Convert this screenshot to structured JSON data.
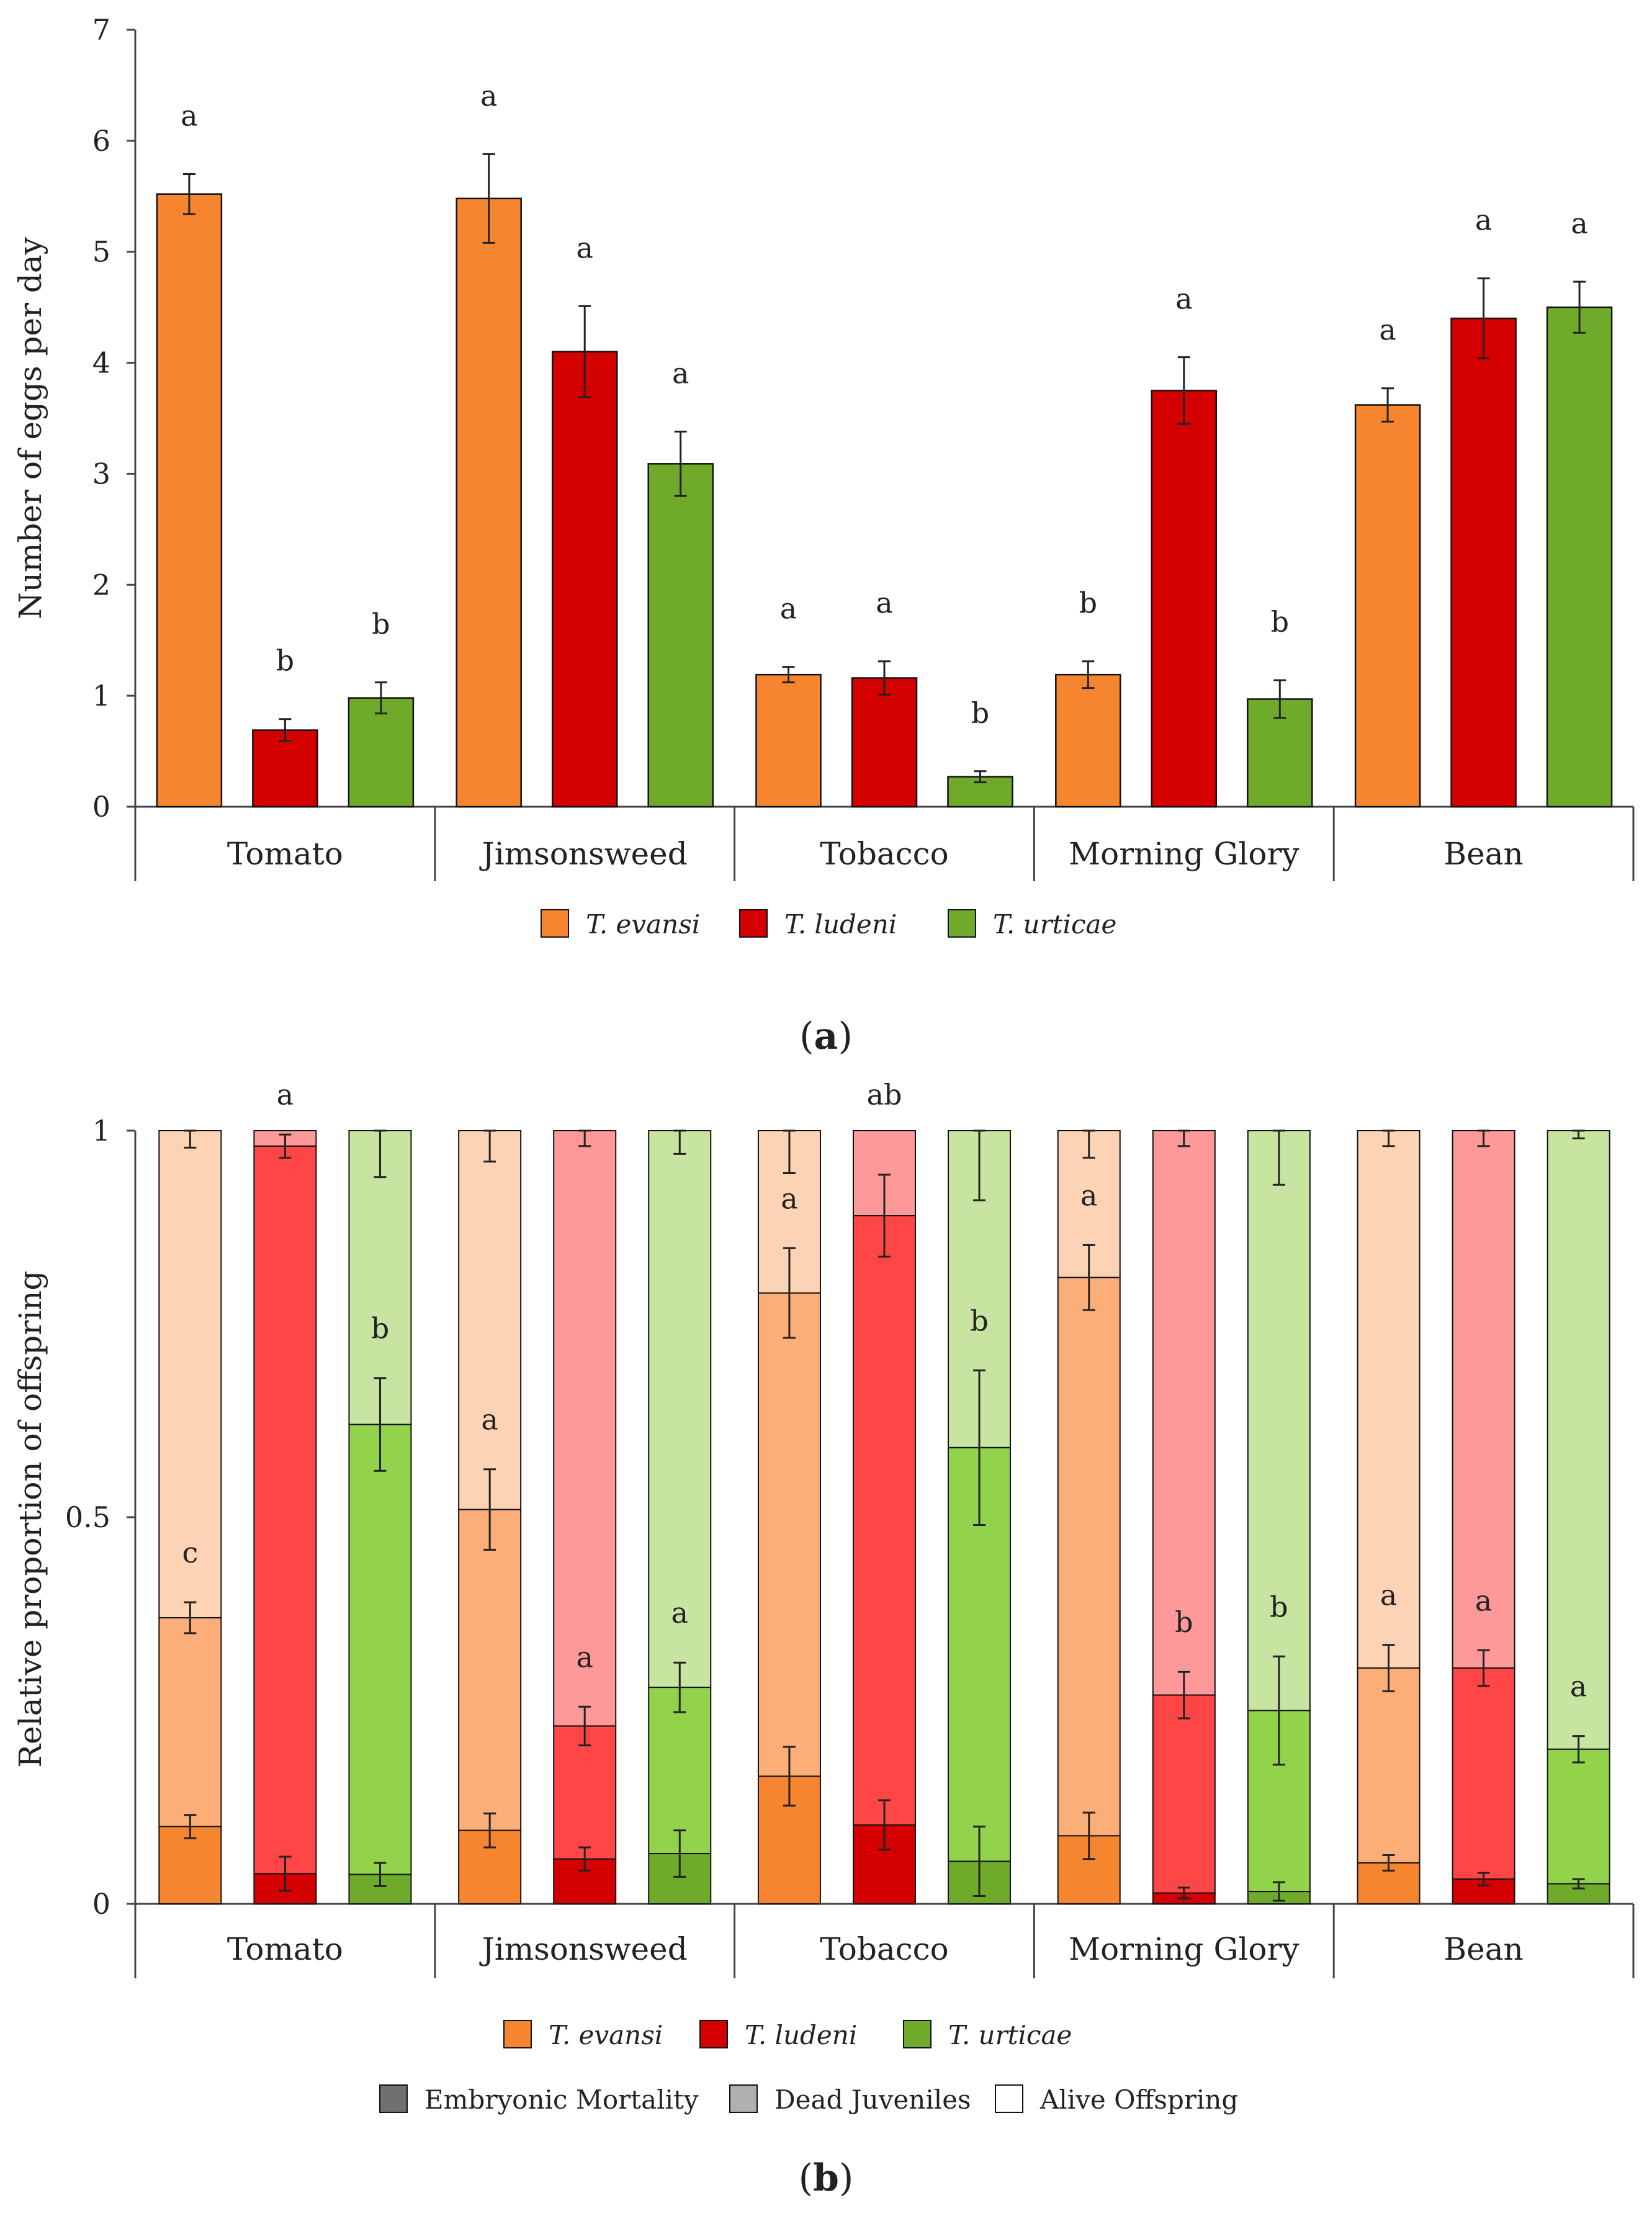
{
  "colors": {
    "T. evansi": {
      "embryonic": "#F5862F",
      "juvenile": "#FBAE78",
      "alive": "#FDD3B6"
    },
    "T. ludeni": {
      "embryonic": "#D40000",
      "juvenile": "#FF4646",
      "alive": "#FE9999"
    },
    "T. urticae": {
      "embryonic": "#6FAA2A",
      "juvenile": "#93D24B",
      "alive": "#C8E4A1"
    },
    "legend_embryonic": "#707070",
    "legend_juvenile": "#B0B0B0",
    "legend_alive": "#FFFFFF"
  },
  "chart_data": [
    {
      "type": "bar",
      "panel_label": "a",
      "ylabel": "Number of eggs per day",
      "xlabel": "",
      "ylim": [
        0,
        7
      ],
      "yticks": [
        "0",
        "1",
        "2",
        "3",
        "4",
        "5",
        "6",
        "7"
      ],
      "categories": [
        "Tomato",
        "Jimsonsweed",
        "Tobacco",
        "Morning Glory",
        "Bean"
      ],
      "series": [
        {
          "name": "T. evansi",
          "values": [
            5.52,
            5.48,
            1.19,
            1.19,
            3.62
          ],
          "errors": [
            0.18,
            0.4,
            0.07,
            0.12,
            0.15
          ],
          "letters": [
            "a",
            "a",
            "a",
            "b",
            "a"
          ]
        },
        {
          "name": "T. ludeni",
          "values": [
            0.69,
            4.1,
            1.16,
            3.75,
            4.4
          ],
          "errors": [
            0.1,
            0.41,
            0.15,
            0.3,
            0.36
          ],
          "letters": [
            "b",
            "a",
            "a",
            "a",
            "a"
          ]
        },
        {
          "name": "T. urticae",
          "values": [
            0.98,
            3.09,
            0.27,
            0.97,
            4.5
          ],
          "errors": [
            0.14,
            0.29,
            0.05,
            0.17,
            0.23
          ],
          "letters": [
            "b",
            "a",
            "b",
            "b",
            "a"
          ]
        }
      ],
      "legend": [
        "T. evansi",
        "T. ludeni",
        "T. urticae"
      ]
    },
    {
      "type": "bar",
      "stacked": true,
      "panel_label": "b",
      "ylabel": "Relative proportion of offspring",
      "xlabel": "",
      "ylim": [
        0,
        1
      ],
      "yticks": [
        "0",
        "0.5",
        "1"
      ],
      "categories": [
        "Tomato",
        "Jimsonsweed",
        "Tobacco",
        "Morning Glory",
        "Bean"
      ],
      "series": [
        {
          "name": "T. evansi",
          "embryonic_mortality": [
            0.1,
            0.095,
            0.165,
            0.088,
            0.053
          ],
          "embryonic_error": [
            0.015,
            0.022,
            0.038,
            0.03,
            0.01
          ],
          "cumulative_with_dead_juveniles": [
            0.37,
            0.51,
            0.79,
            0.81,
            0.305
          ],
          "cumulative_error": [
            0.02,
            0.052,
            0.058,
            0.042,
            0.03
          ],
          "top_error": [
            0.022,
            0.04,
            0.055,
            0.035,
            0.02
          ],
          "letters": [
            "c",
            "a",
            "a",
            "a",
            "a"
          ]
        },
        {
          "name": "T. ludeni",
          "embryonic_mortality": [
            0.039,
            0.058,
            0.102,
            0.014,
            0.032
          ],
          "embryonic_error": [
            0.022,
            0.015,
            0.032,
            0.007,
            0.008
          ],
          "cumulative_with_dead_juveniles": [
            0.98,
            0.23,
            0.89,
            0.27,
            0.305
          ],
          "cumulative_error": [
            0.015,
            0.025,
            0.053,
            0.03,
            0.023
          ],
          "top_error": [
            0.0,
            0.02,
            0.0,
            0.02,
            0.02
          ],
          "letters": [
            "a",
            "a",
            "ab",
            "b",
            "a"
          ]
        },
        {
          "name": "T. urticae",
          "embryonic_mortality": [
            0.038,
            0.065,
            0.055,
            0.016,
            0.026
          ],
          "embryonic_error": [
            0.015,
            0.03,
            0.045,
            0.012,
            0.006
          ],
          "cumulative_with_dead_juveniles": [
            0.62,
            0.28,
            0.59,
            0.25,
            0.2
          ],
          "cumulative_error": [
            0.06,
            0.032,
            0.1,
            0.07,
            0.017
          ],
          "top_error": [
            0.06,
            0.03,
            0.09,
            0.07,
            0.01
          ],
          "letters": [
            "b",
            "a",
            "b",
            "b",
            "a"
          ]
        }
      ],
      "legend_species": [
        "T. evansi",
        "T. ludeni",
        "T. urticae"
      ],
      "legend_segments": [
        "Embryonic Mortality",
        "Dead Juveniles",
        "Alive Offspring"
      ]
    }
  ]
}
